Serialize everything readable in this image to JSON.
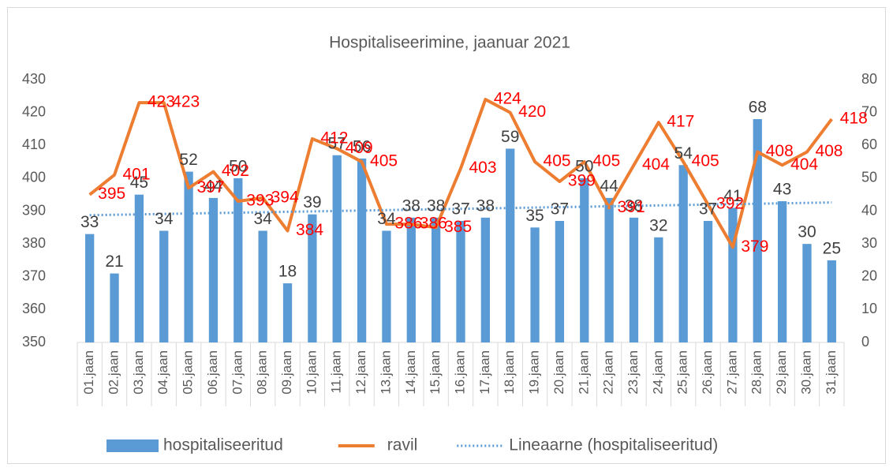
{
  "chart_data": {
    "type": "bar-line",
    "title": "Hospitaliseerimine, jaanuar 2021",
    "categories": [
      "01.jaan",
      "02.jaan",
      "03.jaan",
      "04.jaan",
      "05.jaan",
      "06.jaan",
      "07.jaan",
      "08.jaan",
      "09.jaan",
      "10.jaan",
      "11.jaan",
      "12.jaan",
      "13.jaan",
      "14.jaan",
      "15.jaan",
      "16.jaan",
      "17.jaan",
      "18.jaan",
      "19.jaan",
      "20.jaan",
      "21.jaan",
      "22.jaan",
      "23.jaan",
      "24.jaan",
      "25.jaan",
      "26.jaan",
      "27.jaan",
      "28.jaan",
      "29.jaan",
      "30.jaan",
      "31.jaan"
    ],
    "series": [
      {
        "name": "hospitaliseeritud",
        "type": "bar",
        "axis": "y2",
        "color": "#5b9bd5",
        "label_color": "#404040",
        "values": [
          33,
          21,
          45,
          34,
          52,
          44,
          50,
          34,
          18,
          39,
          57,
          56,
          34,
          38,
          38,
          37,
          38,
          59,
          35,
          37,
          50,
          44,
          38,
          32,
          54,
          37,
          41,
          68,
          43,
          30,
          25
        ]
      },
      {
        "name": "ravil",
        "type": "line",
        "axis": "y",
        "color": "#ed7d31",
        "label_color": "#ff0000",
        "values": [
          395,
          401,
          423,
          423,
          397,
          402,
          393,
          394,
          384,
          412,
          409,
          405,
          386,
          386,
          385,
          403,
          424,
          420,
          405,
          399,
          405,
          391,
          404,
          417,
          405,
          392,
          379,
          408,
          404,
          408,
          418
        ]
      }
    ],
    "trendline": {
      "name": "Lineaarne (hospitaliseeritud)",
      "of_series": 0,
      "kind": "linear",
      "color": "#5b9bd5"
    },
    "ylim": [
      350,
      430
    ],
    "yticks": [
      350,
      360,
      370,
      380,
      390,
      400,
      410,
      420,
      430
    ],
    "y2lim": [
      0,
      80
    ],
    "y2ticks": [
      0,
      10,
      20,
      30,
      40,
      50,
      60,
      70,
      80
    ],
    "grid": false,
    "legend": "bottom"
  }
}
